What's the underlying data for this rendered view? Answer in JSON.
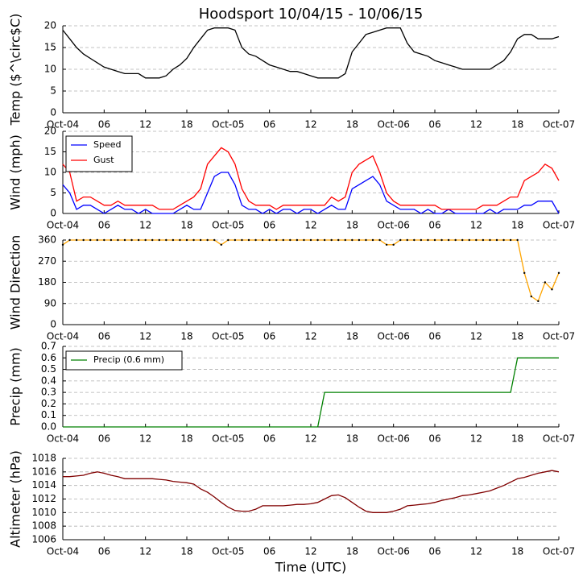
{
  "chart_data": [
    {
      "type": "line",
      "title": "Hoodsport 10/04/15 - 10/06/15",
      "ylabel": "Temp ($^\\circ$C)",
      "x": [
        0,
        1,
        2,
        3,
        4,
        5,
        6,
        7,
        8,
        9,
        10,
        11,
        12,
        13,
        14,
        15,
        16,
        17,
        18,
        19,
        20,
        21,
        22,
        23,
        24,
        25,
        26,
        27,
        28,
        29,
        30,
        31,
        32,
        33,
        34,
        35,
        36,
        37,
        38,
        39,
        40,
        41,
        42,
        43,
        44,
        45,
        46,
        47,
        48,
        49,
        50,
        51,
        52,
        53,
        54,
        55,
        56,
        57,
        58,
        59,
        60,
        61,
        62,
        63,
        64,
        65,
        66,
        67,
        68,
        69,
        70,
        71,
        72
      ],
      "series": [
        {
          "name": "Temp",
          "color": "#000000",
          "values": [
            19,
            17,
            15,
            13.5,
            12.5,
            11.5,
            10.5,
            10,
            9.5,
            9,
            9,
            9,
            8,
            8,
            8,
            8.5,
            10,
            11,
            12.5,
            15,
            17,
            19,
            19.5,
            19.5,
            19.5,
            19,
            15,
            13.5,
            13,
            12,
            11,
            10.5,
            10,
            9.5,
            9.5,
            9,
            8.5,
            8,
            8,
            8,
            8,
            9,
            14,
            16,
            18,
            18.5,
            19,
            19.5,
            19.5,
            19.5,
            16,
            14,
            13.5,
            13,
            12,
            11.5,
            11,
            10.5,
            10,
            10,
            10,
            10,
            10,
            11,
            12,
            14,
            17,
            18,
            18,
            17,
            17,
            17,
            17.5
          ]
        }
      ],
      "xlim": [
        0,
        72
      ],
      "xticks": [
        {
          "value": 0,
          "label": "Oct-04"
        },
        {
          "value": 6,
          "label": "06"
        },
        12,
        18,
        {
          "value": 24,
          "label": "Oct-05"
        },
        {
          "value": 30,
          "label": "06"
        },
        {
          "value": 36,
          "label": "12"
        },
        {
          "value": 42,
          "label": "18"
        },
        {
          "value": 48,
          "label": "Oct-06"
        },
        {
          "value": 54,
          "label": "06"
        },
        {
          "value": 60,
          "label": "12"
        },
        {
          "value": 66,
          "label": "18"
        },
        {
          "value": 72,
          "label": "Oct-07"
        }
      ],
      "ylim": [
        0,
        20
      ],
      "yticks": [
        0,
        5,
        10,
        15,
        20
      ],
      "grid": true
    },
    {
      "type": "line",
      "ylabel": "Wind (mph)",
      "legend": "upper left",
      "x": [
        0,
        1,
        2,
        3,
        4,
        5,
        6,
        7,
        8,
        9,
        10,
        11,
        12,
        13,
        14,
        15,
        16,
        17,
        18,
        19,
        20,
        21,
        22,
        23,
        24,
        25,
        26,
        27,
        28,
        29,
        30,
        31,
        32,
        33,
        34,
        35,
        36,
        37,
        38,
        39,
        40,
        41,
        42,
        43,
        44,
        45,
        46,
        47,
        48,
        49,
        50,
        51,
        52,
        53,
        54,
        55,
        56,
        57,
        58,
        59,
        60,
        61,
        62,
        63,
        64,
        65,
        66,
        67,
        68,
        69,
        70,
        71,
        72
      ],
      "series": [
        {
          "name": "Speed",
          "color": "#0000ff",
          "values": [
            7,
            5,
            1,
            2,
            2,
            1,
            0,
            1,
            2,
            1,
            1,
            0,
            1,
            0,
            0,
            0,
            0,
            1,
            2,
            1,
            1,
            5,
            9,
            10,
            10,
            7,
            2,
            1,
            1,
            0,
            1,
            0,
            1,
            1,
            0,
            1,
            1,
            0,
            1,
            2,
            1,
            1,
            6,
            7,
            8,
            9,
            7,
            3,
            2,
            1,
            1,
            1,
            0,
            1,
            0,
            0,
            1,
            0,
            0,
            0,
            0,
            0,
            1,
            0,
            1,
            1,
            1,
            2,
            2,
            3,
            3,
            3,
            0
          ]
        },
        {
          "name": "Gust",
          "color": "#ff0000",
          "values": [
            12,
            10,
            3,
            4,
            4,
            3,
            2,
            2,
            3,
            2,
            2,
            2,
            2,
            2,
            1,
            1,
            1,
            2,
            3,
            4,
            6,
            12,
            14,
            16,
            15,
            12,
            6,
            3,
            2,
            2,
            2,
            1,
            2,
            2,
            2,
            2,
            2,
            2,
            2,
            4,
            3,
            4,
            10,
            12,
            13,
            14,
            10,
            5,
            3,
            2,
            2,
            2,
            2,
            2,
            2,
            1,
            1,
            1,
            1,
            1,
            1,
            2,
            2,
            2,
            3,
            4,
            4,
            8,
            9,
            10,
            12,
            11,
            8
          ]
        }
      ],
      "xlim": [
        0,
        72
      ],
      "xticks": [
        {
          "value": 0,
          "label": "Oct-04"
        },
        {
          "value": 6,
          "label": "06"
        },
        12,
        18,
        {
          "value": 24,
          "label": "Oct-05"
        },
        {
          "value": 30,
          "label": "06"
        },
        {
          "value": 36,
          "label": "12"
        },
        {
          "value": 42,
          "label": "18"
        },
        {
          "value": 48,
          "label": "Oct-06"
        },
        {
          "value": 54,
          "label": "06"
        },
        {
          "value": 60,
          "label": "12"
        },
        {
          "value": 66,
          "label": "18"
        },
        {
          "value": 72,
          "label": "Oct-07"
        }
      ],
      "ylim": [
        0,
        20
      ],
      "yticks": [
        0,
        5,
        10,
        15,
        20
      ],
      "grid": true
    },
    {
      "type": "line",
      "ylabel": "Wind Direction",
      "marker_color": "#000000",
      "x": [
        0,
        1,
        2,
        3,
        4,
        5,
        6,
        7,
        8,
        9,
        10,
        11,
        12,
        13,
        14,
        15,
        16,
        17,
        18,
        19,
        20,
        21,
        22,
        23,
        24,
        25,
        26,
        27,
        28,
        29,
        30,
        31,
        32,
        33,
        34,
        35,
        36,
        37,
        38,
        39,
        40,
        41,
        42,
        43,
        44,
        45,
        46,
        47,
        48,
        49,
        50,
        51,
        52,
        53,
        54,
        55,
        56,
        57,
        58,
        59,
        60,
        61,
        62,
        63,
        64,
        65,
        66,
        67,
        68,
        69,
        70,
        71,
        72
      ],
      "series": [
        {
          "name": "Direction",
          "color": "#ffa500",
          "values": [
            340,
            360,
            360,
            360,
            360,
            360,
            360,
            360,
            360,
            360,
            360,
            360,
            360,
            360,
            360,
            360,
            360,
            360,
            360,
            360,
            360,
            360,
            360,
            340,
            360,
            360,
            360,
            360,
            360,
            360,
            360,
            360,
            360,
            360,
            360,
            360,
            360,
            360,
            360,
            360,
            360,
            360,
            360,
            360,
            360,
            360,
            360,
            340,
            340,
            360,
            360,
            360,
            360,
            360,
            360,
            360,
            360,
            360,
            360,
            360,
            360,
            360,
            360,
            360,
            360,
            360,
            360,
            220,
            120,
            100,
            180,
            150,
            220
          ]
        }
      ],
      "xlim": [
        0,
        72
      ],
      "xticks": [
        {
          "value": 0,
          "label": "Oct-04"
        },
        {
          "value": 6,
          "label": "06"
        },
        12,
        18,
        {
          "value": 24,
          "label": "Oct-05"
        },
        {
          "value": 30,
          "label": "06"
        },
        {
          "value": 36,
          "label": "12"
        },
        {
          "value": 42,
          "label": "18"
        },
        {
          "value": 48,
          "label": "Oct-06"
        },
        {
          "value": 54,
          "label": "06"
        },
        {
          "value": 60,
          "label": "12"
        },
        {
          "value": 66,
          "label": "18"
        },
        {
          "value": 72,
          "label": "Oct-07"
        }
      ],
      "ylim": [
        0,
        360
      ],
      "yticks": [
        0,
        90,
        180,
        270,
        360
      ],
      "grid": true
    },
    {
      "type": "line",
      "ylabel": "Precip (mm)",
      "legend": "upper left",
      "x": [
        0,
        1,
        2,
        3,
        4,
        5,
        6,
        7,
        8,
        9,
        10,
        11,
        12,
        13,
        14,
        15,
        16,
        17,
        18,
        19,
        20,
        21,
        22,
        23,
        24,
        25,
        26,
        27,
        28,
        29,
        30,
        31,
        32,
        33,
        34,
        35,
        36,
        37,
        38,
        39,
        40,
        41,
        42,
        43,
        44,
        45,
        46,
        47,
        48,
        49,
        50,
        51,
        52,
        53,
        54,
        55,
        56,
        57,
        58,
        59,
        60,
        61,
        62,
        63,
        64,
        65,
        66,
        67,
        68,
        69,
        70,
        71,
        72
      ],
      "series": [
        {
          "name": "Precip (0.6 mm)",
          "color": "#008000",
          "values": [
            0,
            0,
            0,
            0,
            0,
            0,
            0,
            0,
            0,
            0,
            0,
            0,
            0,
            0,
            0,
            0,
            0,
            0,
            0,
            0,
            0,
            0,
            0,
            0,
            0,
            0,
            0,
            0,
            0,
            0,
            0,
            0,
            0,
            0,
            0,
            0,
            0,
            0,
            0.3,
            0.3,
            0.3,
            0.3,
            0.3,
            0.3,
            0.3,
            0.3,
            0.3,
            0.3,
            0.3,
            0.3,
            0.3,
            0.3,
            0.3,
            0.3,
            0.3,
            0.3,
            0.3,
            0.3,
            0.3,
            0.3,
            0.3,
            0.3,
            0.3,
            0.3,
            0.3,
            0.3,
            0.6,
            0.6,
            0.6,
            0.6,
            0.6,
            0.6,
            0.6
          ]
        }
      ],
      "xlim": [
        0,
        72
      ],
      "xticks": [
        {
          "value": 0,
          "label": "Oct-04"
        },
        {
          "value": 6,
          "label": "06"
        },
        12,
        18,
        {
          "value": 24,
          "label": "Oct-05"
        },
        {
          "value": 30,
          "label": "06"
        },
        {
          "value": 36,
          "label": "12"
        },
        {
          "value": 42,
          "label": "18"
        },
        {
          "value": 48,
          "label": "Oct-06"
        },
        {
          "value": 54,
          "label": "06"
        },
        {
          "value": 60,
          "label": "12"
        },
        {
          "value": 66,
          "label": "18"
        },
        {
          "value": 72,
          "label": "Oct-07"
        }
      ],
      "ylim": [
        0,
        0.7
      ],
      "yticks": [
        {
          "value": 0,
          "label": "0.0"
        },
        0.1,
        0.2,
        0.3,
        0.4,
        0.5,
        0.6,
        0.7
      ],
      "grid": true
    },
    {
      "type": "line",
      "ylabel": "Altimeter (hPa)",
      "xlabel": "Time (UTC)",
      "x": [
        0,
        1,
        2,
        3,
        4,
        5,
        6,
        7,
        8,
        9,
        10,
        11,
        12,
        13,
        14,
        15,
        16,
        17,
        18,
        19,
        20,
        21,
        22,
        23,
        24,
        25,
        26,
        27,
        28,
        29,
        30,
        31,
        32,
        33,
        34,
        35,
        36,
        37,
        38,
        39,
        40,
        41,
        42,
        43,
        44,
        45,
        46,
        47,
        48,
        49,
        50,
        51,
        52,
        53,
        54,
        55,
        56,
        57,
        58,
        59,
        60,
        61,
        62,
        63,
        64,
        65,
        66,
        67,
        68,
        69,
        70,
        71,
        72
      ],
      "series": [
        {
          "name": "Altimeter",
          "color": "#800000",
          "values": [
            1015.3,
            1015.3,
            1015.4,
            1015.5,
            1015.8,
            1016,
            1015.8,
            1015.5,
            1015.3,
            1015,
            1015,
            1015,
            1015,
            1015,
            1014.9,
            1014.8,
            1014.6,
            1014.5,
            1014.4,
            1014.2,
            1013.5,
            1013,
            1012.3,
            1011.5,
            1010.8,
            1010.3,
            1010.2,
            1010.2,
            1010.5,
            1011,
            1011,
            1011,
            1011,
            1011.1,
            1011.2,
            1011.2,
            1011.3,
            1011.5,
            1012,
            1012.5,
            1012.6,
            1012.2,
            1011.5,
            1010.8,
            1010.2,
            1010,
            1010,
            1010,
            1010.2,
            1010.5,
            1011,
            1011.1,
            1011.2,
            1011.3,
            1011.5,
            1011.8,
            1012,
            1012.2,
            1012.5,
            1012.6,
            1012.8,
            1013,
            1013.2,
            1013.6,
            1014,
            1014.5,
            1015,
            1015.2,
            1015.5,
            1015.8,
            1016,
            1016.2,
            1016
          ]
        }
      ],
      "xlim": [
        0,
        72
      ],
      "xticks": [
        {
          "value": 0,
          "label": "Oct-04"
        },
        {
          "value": 6,
          "label": "06"
        },
        12,
        18,
        {
          "value": 24,
          "label": "Oct-05"
        },
        {
          "value": 30,
          "label": "06"
        },
        {
          "value": 36,
          "label": "12"
        },
        {
          "value": 42,
          "label": "18"
        },
        {
          "value": 48,
          "label": "Oct-06"
        },
        {
          "value": 54,
          "label": "06"
        },
        {
          "value": 60,
          "label": "12"
        },
        {
          "value": 66,
          "label": "18"
        },
        {
          "value": 72,
          "label": "Oct-07"
        }
      ],
      "ylim": [
        1006,
        1018
      ],
      "yticks": [
        1006,
        1008,
        1010,
        1012,
        1014,
        1016,
        1018
      ],
      "grid": true
    }
  ]
}
